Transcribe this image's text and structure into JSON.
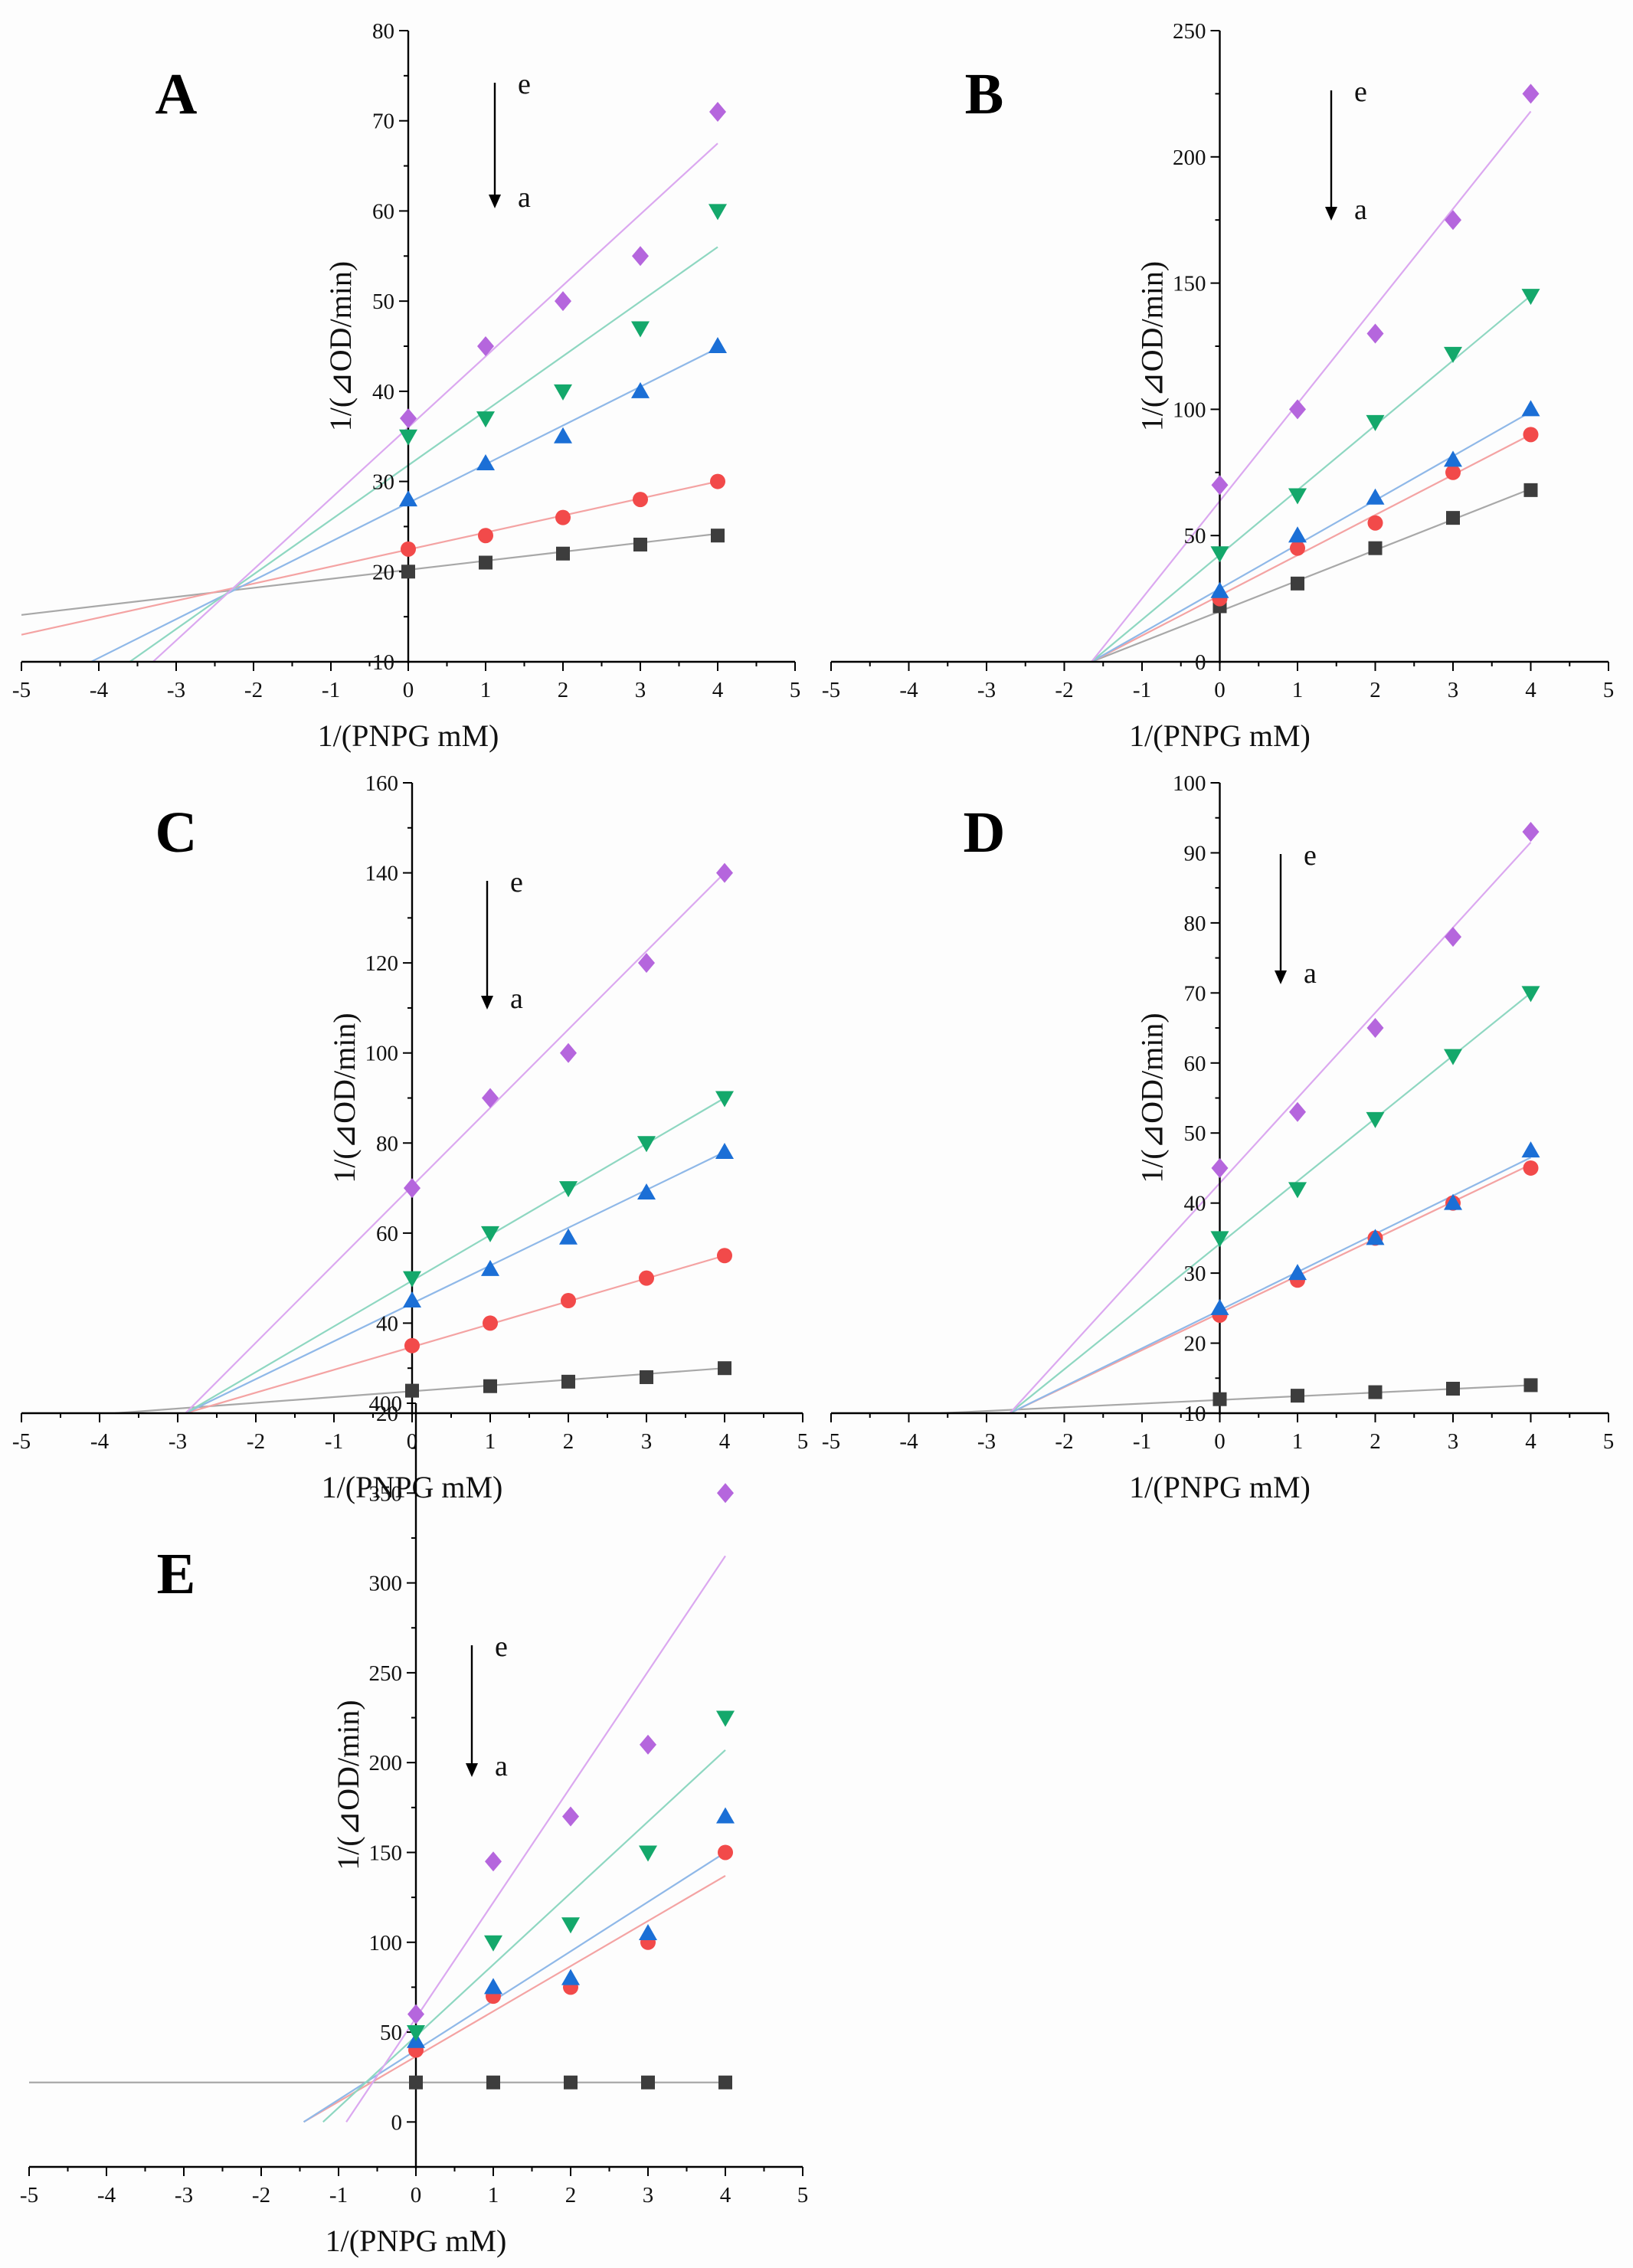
{
  "colors": {
    "a": "#3d3d3d",
    "b": "#f24a4a",
    "c": "#1b6fd6",
    "d": "#14a86b",
    "e": "#b566dd",
    "line_a": "#a8a8a8",
    "line_b": "#f4a3a3",
    "line_c": "#8fb8e8",
    "line_d": "#8ed7c1",
    "line_e": "#dba8f0"
  },
  "chart_data": [
    {
      "panel": "A",
      "type": "scatter",
      "xlabel": "1/(PNPG mM)",
      "ylabel": "1/(⊿OD/min)",
      "xlim": [
        -5,
        5
      ],
      "ylim": [
        10,
        80
      ],
      "xticks": [
        "-5",
        "-4",
        "-3",
        "-2",
        "-1",
        "0",
        "1",
        "2",
        "3",
        "4",
        "5"
      ],
      "yticks": [
        "10",
        "20",
        "30",
        "40",
        "50",
        "60",
        "70",
        "80"
      ],
      "arrow_top": "e",
      "arrow_bottom": "a",
      "series": [
        {
          "name": "a",
          "marker": "square",
          "x": [
            0,
            1,
            2,
            3,
            4
          ],
          "y": [
            20,
            21,
            22,
            23,
            24
          ],
          "fit": {
            "x": [
              -5,
              4
            ],
            "y": [
              15.2,
              24.2
            ]
          }
        },
        {
          "name": "b",
          "marker": "circle",
          "x": [
            0,
            1,
            2,
            3,
            4
          ],
          "y": [
            22.5,
            24,
            26,
            28,
            30
          ],
          "fit": {
            "x": [
              -5,
              4
            ],
            "y": [
              13,
              30
            ]
          }
        },
        {
          "name": "c",
          "marker": "triangle-up",
          "x": [
            0,
            1,
            2,
            3,
            4
          ],
          "y": [
            28,
            32,
            35,
            40,
            45
          ],
          "fit": {
            "x": [
              -4.1,
              4
            ],
            "y": [
              10,
              44.8
            ]
          }
        },
        {
          "name": "d",
          "marker": "triangle-down",
          "x": [
            0,
            1,
            2,
            3,
            4
          ],
          "y": [
            35,
            37,
            40,
            47,
            60
          ],
          "fit": {
            "x": [
              -3.6,
              4
            ],
            "y": [
              10,
              56
            ]
          }
        },
        {
          "name": "e",
          "marker": "diamond",
          "x": [
            0,
            1,
            2,
            3,
            4
          ],
          "y": [
            37,
            45,
            50,
            55,
            71
          ],
          "fit": {
            "x": [
              -3.3,
              4
            ],
            "y": [
              10,
              67.5
            ]
          }
        }
      ]
    },
    {
      "panel": "B",
      "type": "scatter",
      "xlabel": "1/(PNPG mM)",
      "ylabel": "1/(⊿OD/min)",
      "xlim": [
        -5,
        5
      ],
      "ylim": [
        0,
        250
      ],
      "xticks": [
        "-5",
        "-4",
        "-3",
        "-2",
        "-1",
        "0",
        "1",
        "2",
        "3",
        "4",
        "5"
      ],
      "yticks": [
        "0",
        "50",
        "100",
        "150",
        "200",
        "250"
      ],
      "arrow_top": "e",
      "arrow_bottom": "a",
      "series": [
        {
          "name": "a",
          "marker": "square",
          "x": [
            0,
            1,
            2,
            3,
            4
          ],
          "y": [
            22,
            31,
            45,
            57,
            68
          ],
          "fit": {
            "x": [
              -1.65,
              4
            ],
            "y": [
              0,
              68.5
            ]
          }
        },
        {
          "name": "b",
          "marker": "circle",
          "x": [
            0,
            1,
            2,
            3,
            4
          ],
          "y": [
            25,
            45,
            55,
            75,
            90
          ],
          "fit": {
            "x": [
              -1.65,
              4
            ],
            "y": [
              0,
              90
            ]
          }
        },
        {
          "name": "c",
          "marker": "triangle-up",
          "x": [
            0,
            1,
            2,
            3,
            4
          ],
          "y": [
            28,
            50,
            65,
            80,
            100
          ],
          "fit": {
            "x": [
              -1.65,
              4
            ],
            "y": [
              0,
              99
            ]
          }
        },
        {
          "name": "d",
          "marker": "triangle-down",
          "x": [
            0,
            1,
            2,
            3,
            4
          ],
          "y": [
            43,
            66,
            95,
            122,
            145
          ],
          "fit": {
            "x": [
              -1.65,
              4
            ],
            "y": [
              0,
              145
            ]
          }
        },
        {
          "name": "e",
          "marker": "diamond",
          "x": [
            0,
            1,
            2,
            3,
            4
          ],
          "y": [
            70,
            100,
            130,
            175,
            225
          ],
          "fit": {
            "x": [
              -1.65,
              4
            ],
            "y": [
              0,
              218
            ]
          }
        }
      ]
    },
    {
      "panel": "C",
      "type": "scatter",
      "xlabel": "1/(PNPG mM)",
      "ylabel": "1/(⊿OD/min)",
      "xlim": [
        -5,
        5
      ],
      "ylim": [
        20,
        160
      ],
      "xticks": [
        "-5",
        "-4",
        "-3",
        "-2",
        "-1",
        "0",
        "1",
        "2",
        "3",
        "4",
        "5"
      ],
      "yticks": [
        "20",
        "40",
        "60",
        "80",
        "100",
        "120",
        "140",
        "160"
      ],
      "arrow_top": "e",
      "arrow_bottom": "a",
      "series": [
        {
          "name": "a",
          "marker": "square",
          "x": [
            0,
            1,
            2,
            3,
            4
          ],
          "y": [
            25,
            26,
            27,
            28,
            30
          ],
          "fit": {
            "x": [
              -3.8,
              4
            ],
            "y": [
              20,
              30
            ]
          }
        },
        {
          "name": "b",
          "marker": "circle",
          "x": [
            0,
            1,
            2,
            3,
            4
          ],
          "y": [
            35,
            40,
            45,
            50,
            55
          ],
          "fit": {
            "x": [
              -2.9,
              4
            ],
            "y": [
              20,
              55
            ]
          }
        },
        {
          "name": "c",
          "marker": "triangle-up",
          "x": [
            0,
            1,
            2,
            3,
            4
          ],
          "y": [
            45,
            52,
            59,
            69,
            78
          ],
          "fit": {
            "x": [
              -2.9,
              4
            ],
            "y": [
              20,
              78
            ]
          }
        },
        {
          "name": "d",
          "marker": "triangle-down",
          "x": [
            0,
            1,
            2,
            3,
            4
          ],
          "y": [
            50,
            60,
            70,
            80,
            90
          ],
          "fit": {
            "x": [
              -2.9,
              4
            ],
            "y": [
              20,
              90
            ]
          }
        },
        {
          "name": "e",
          "marker": "diamond",
          "x": [
            0,
            1,
            2,
            3,
            4
          ],
          "y": [
            70,
            90,
            100,
            120,
            140
          ],
          "fit": {
            "x": [
              -2.9,
              4
            ],
            "y": [
              20,
              140
            ]
          }
        }
      ]
    },
    {
      "panel": "D",
      "type": "scatter",
      "xlabel": "1/(PNPG mM)",
      "ylabel": "1/(⊿OD/min)",
      "xlim": [
        -5,
        5
      ],
      "ylim": [
        10,
        100
      ],
      "xticks": [
        "-5",
        "-4",
        "-3",
        "-2",
        "-1",
        "0",
        "1",
        "2",
        "3",
        "4",
        "5"
      ],
      "yticks": [
        "10",
        "20",
        "30",
        "40",
        "50",
        "60",
        "70",
        "80",
        "90",
        "100"
      ],
      "arrow_top": "e",
      "arrow_bottom": "a",
      "series": [
        {
          "name": "a",
          "marker": "square",
          "x": [
            0,
            1,
            2,
            3,
            4
          ],
          "y": [
            12,
            12.5,
            13,
            13.5,
            14
          ],
          "fit": {
            "x": [
              -3.6,
              4
            ],
            "y": [
              10,
              14
            ]
          }
        },
        {
          "name": "b",
          "marker": "circle",
          "x": [
            0,
            1,
            2,
            3,
            4
          ],
          "y": [
            24,
            29,
            35,
            40,
            45
          ],
          "fit": {
            "x": [
              -2.7,
              4
            ],
            "y": [
              10,
              45.5
            ]
          }
        },
        {
          "name": "c",
          "marker": "triangle-up",
          "x": [
            0,
            1,
            2,
            3,
            4
          ],
          "y": [
            25,
            30,
            35,
            40,
            47.5
          ],
          "fit": {
            "x": [
              -2.7,
              4
            ],
            "y": [
              10,
              46.5
            ]
          }
        },
        {
          "name": "d",
          "marker": "triangle-down",
          "x": [
            0,
            1,
            2,
            3,
            4
          ],
          "y": [
            35,
            42,
            52,
            61,
            70
          ],
          "fit": {
            "x": [
              -2.7,
              4
            ],
            "y": [
              10,
              70
            ]
          }
        },
        {
          "name": "e",
          "marker": "diamond",
          "x": [
            0,
            1,
            2,
            3,
            4
          ],
          "y": [
            45,
            53,
            65,
            78,
            93
          ],
          "fit": {
            "x": [
              -2.7,
              4
            ],
            "y": [
              10,
              91.5
            ]
          }
        }
      ]
    },
    {
      "panel": "E",
      "type": "scatter",
      "xlabel": "1/(PNPG mM)",
      "ylabel": "1/(⊿OD/min)",
      "xlim": [
        -5,
        5
      ],
      "ylim": [
        -25,
        400
      ],
      "xticks": [
        "-5",
        "-4",
        "-3",
        "-2",
        "-1",
        "0",
        "1",
        "2",
        "3",
        "4",
        "5"
      ],
      "yticks": [
        "0",
        "50",
        "100",
        "150",
        "200",
        "250",
        "300",
        "350",
        "400"
      ],
      "arrow_top": "e",
      "arrow_bottom": "a",
      "series": [
        {
          "name": "a",
          "marker": "square",
          "x": [
            0,
            1,
            2,
            3,
            4
          ],
          "y": [
            22,
            22,
            22,
            22,
            22
          ],
          "fit": {
            "x": [
              -5,
              4
            ],
            "y": [
              22,
              22
            ]
          }
        },
        {
          "name": "b",
          "marker": "circle",
          "x": [
            0,
            1,
            2,
            3,
            4
          ],
          "y": [
            40,
            70,
            75,
            100,
            150
          ],
          "fit": {
            "x": [
              -1.45,
              4
            ],
            "y": [
              0,
              137
            ]
          }
        },
        {
          "name": "c",
          "marker": "triangle-up",
          "x": [
            0,
            1,
            2,
            3,
            4
          ],
          "y": [
            45,
            75,
            80,
            105,
            170
          ],
          "fit": {
            "x": [
              -1.45,
              4
            ],
            "y": [
              0,
              150
            ]
          }
        },
        {
          "name": "d",
          "marker": "triangle-down",
          "x": [
            0,
            1,
            2,
            3,
            4
          ],
          "y": [
            50,
            100,
            110,
            150,
            225
          ],
          "fit": {
            "x": [
              -1.2,
              4
            ],
            "y": [
              0,
              207
            ]
          }
        },
        {
          "name": "e",
          "marker": "diamond",
          "x": [
            0,
            1,
            2,
            3,
            4
          ],
          "y": [
            60,
            145,
            170,
            210,
            350
          ],
          "fit": {
            "x": [
              -0.9,
              4
            ],
            "y": [
              0,
              315
            ]
          }
        }
      ]
    }
  ]
}
